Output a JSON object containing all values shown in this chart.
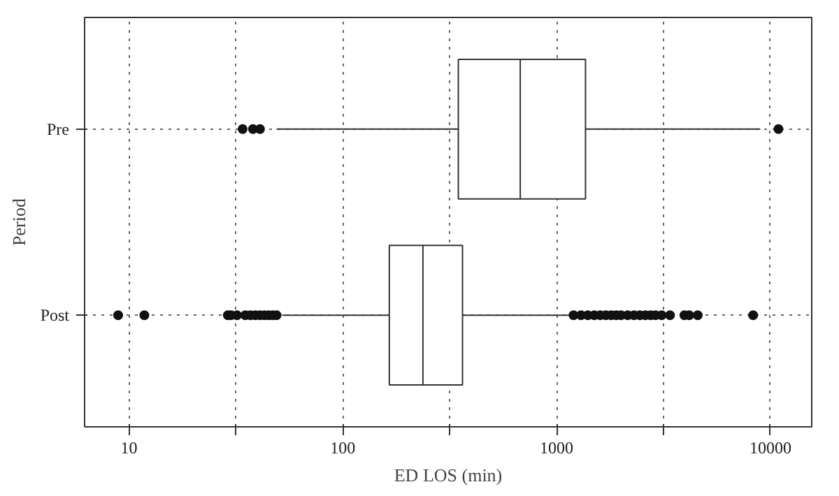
{
  "chart_data": {
    "type": "box",
    "orientation": "horizontal",
    "xlabel": "ED LOS (min)",
    "ylabel": "Period",
    "categories": [
      "Pre",
      "Post"
    ],
    "boxes": [
      {
        "low": 49,
        "q1": 347,
        "median": 676,
        "q3": 1365,
        "high": 8960,
        "outliers": [
          34,
          38,
          41,
          10900
        ]
      },
      {
        "low": 52,
        "q1": 165,
        "median": 237,
        "q3": 363,
        "high": 1170,
        "outliers": [
          8.9,
          11.8,
          29,
          30,
          32,
          35,
          37,
          39,
          41,
          43,
          45,
          47,
          49,
          1200,
          1300,
          1400,
          1500,
          1600,
          1700,
          1800,
          1900,
          2000,
          2150,
          2300,
          2450,
          2600,
          2750,
          2900,
          3100,
          3390,
          3960,
          4170,
          4570,
          8300
        ]
      }
    ],
    "log": "x",
    "xlim": [
      6.2,
      15600
    ],
    "xticks": [
      10,
      {
        "value": 31.62,
        "label": null
      },
      100,
      {
        "value": 316.2,
        "label": null
      },
      1000,
      {
        "value": 3162,
        "label": null
      },
      10000
    ],
    "grid": true
  }
}
